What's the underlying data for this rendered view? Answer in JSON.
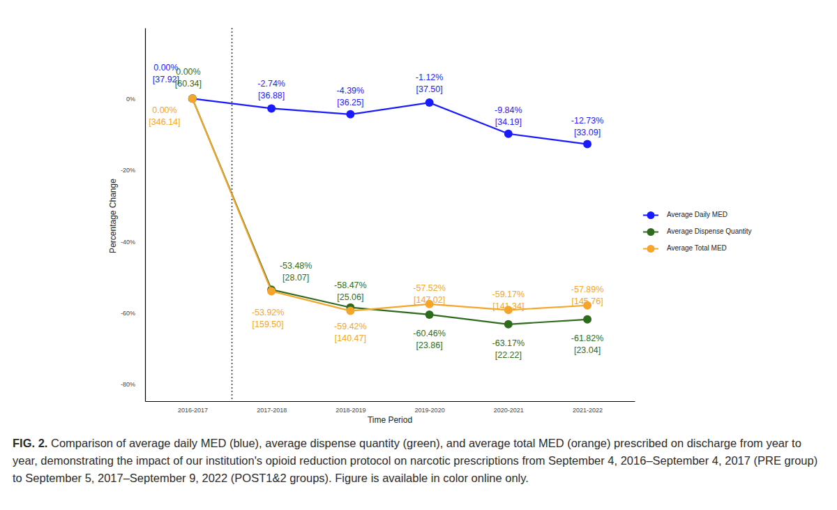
{
  "chart_data": {
    "type": "line",
    "categories": [
      "2016-2017",
      "2017-2018",
      "2018-2019",
      "2019-2020",
      "2020-2021",
      "2021-2022"
    ],
    "series": [
      {
        "name": "Average Daily MED",
        "color": "#1a1aff",
        "values": [
          0,
          -2.74,
          -4.39,
          -1.12,
          -9.84,
          -12.73
        ],
        "value_labels": [
          "0.00%",
          "-2.74%",
          "-4.39%",
          "-1.12%",
          "-9.84%",
          "-12.73%"
        ],
        "average_labels": [
          "[37.92]",
          "[36.88]",
          "[36.25]",
          "[37.50]",
          "[34.19]",
          "[33.09]"
        ]
      },
      {
        "name": "Average Dispense Quantity",
        "color": "#2e6b1c",
        "values": [
          0,
          -53.48,
          -58.47,
          -60.46,
          -63.17,
          -61.82
        ],
        "value_labels": [
          "0.00%",
          "-53.48%",
          "-58.47%",
          "-60.46%",
          "-63.17%",
          "-61.82%"
        ],
        "average_labels": [
          "[60.34]",
          "[28.07]",
          "[25.06]",
          "[23.86]",
          "[22.22]",
          "[23.04]"
        ]
      },
      {
        "name": "Average Total MED",
        "color": "#f5a52a",
        "values": [
          0,
          -53.92,
          -59.42,
          -57.52,
          -59.17,
          -57.89
        ],
        "value_labels": [
          "0.00%",
          "-53.92%",
          "-59.42%",
          "-57.52%",
          "-59.17%",
          "-57.89%"
        ],
        "average_labels": [
          "[346.14]",
          "[159.50]",
          "[140.47]",
          "[147.02]",
          "[141.34]",
          "[145.76]"
        ]
      }
    ],
    "x_label": "Time Period",
    "y_label": "Percentage Change",
    "ylim": [
      -84.7,
      19.8
    ],
    "yticks": [
      {
        "value": -80,
        "label": "-80%"
      },
      {
        "value": -60,
        "label": "-60%"
      },
      {
        "value": -40,
        "label": "-40%"
      },
      {
        "value": -20,
        "label": "-20%"
      },
      {
        "value": 0,
        "label": "0%"
      }
    ],
    "grid": false,
    "legend": "right",
    "marker": "circle",
    "data_labels": true,
    "caption_label": "FIG. 2.",
    "caption": "Comparison of average daily MED (blue), average dispense quantity (green), and average total MED (orange) prescribed on discharge from year to year, demonstrating the impact of our institution's opioid reduction protocol on narcotic prescriptions from September 4, 2016–September 4, 2017 (PRE group) to September 5, 2017–September 9, 2022 (POST1&2 groups). Figure is available in color online only."
  }
}
